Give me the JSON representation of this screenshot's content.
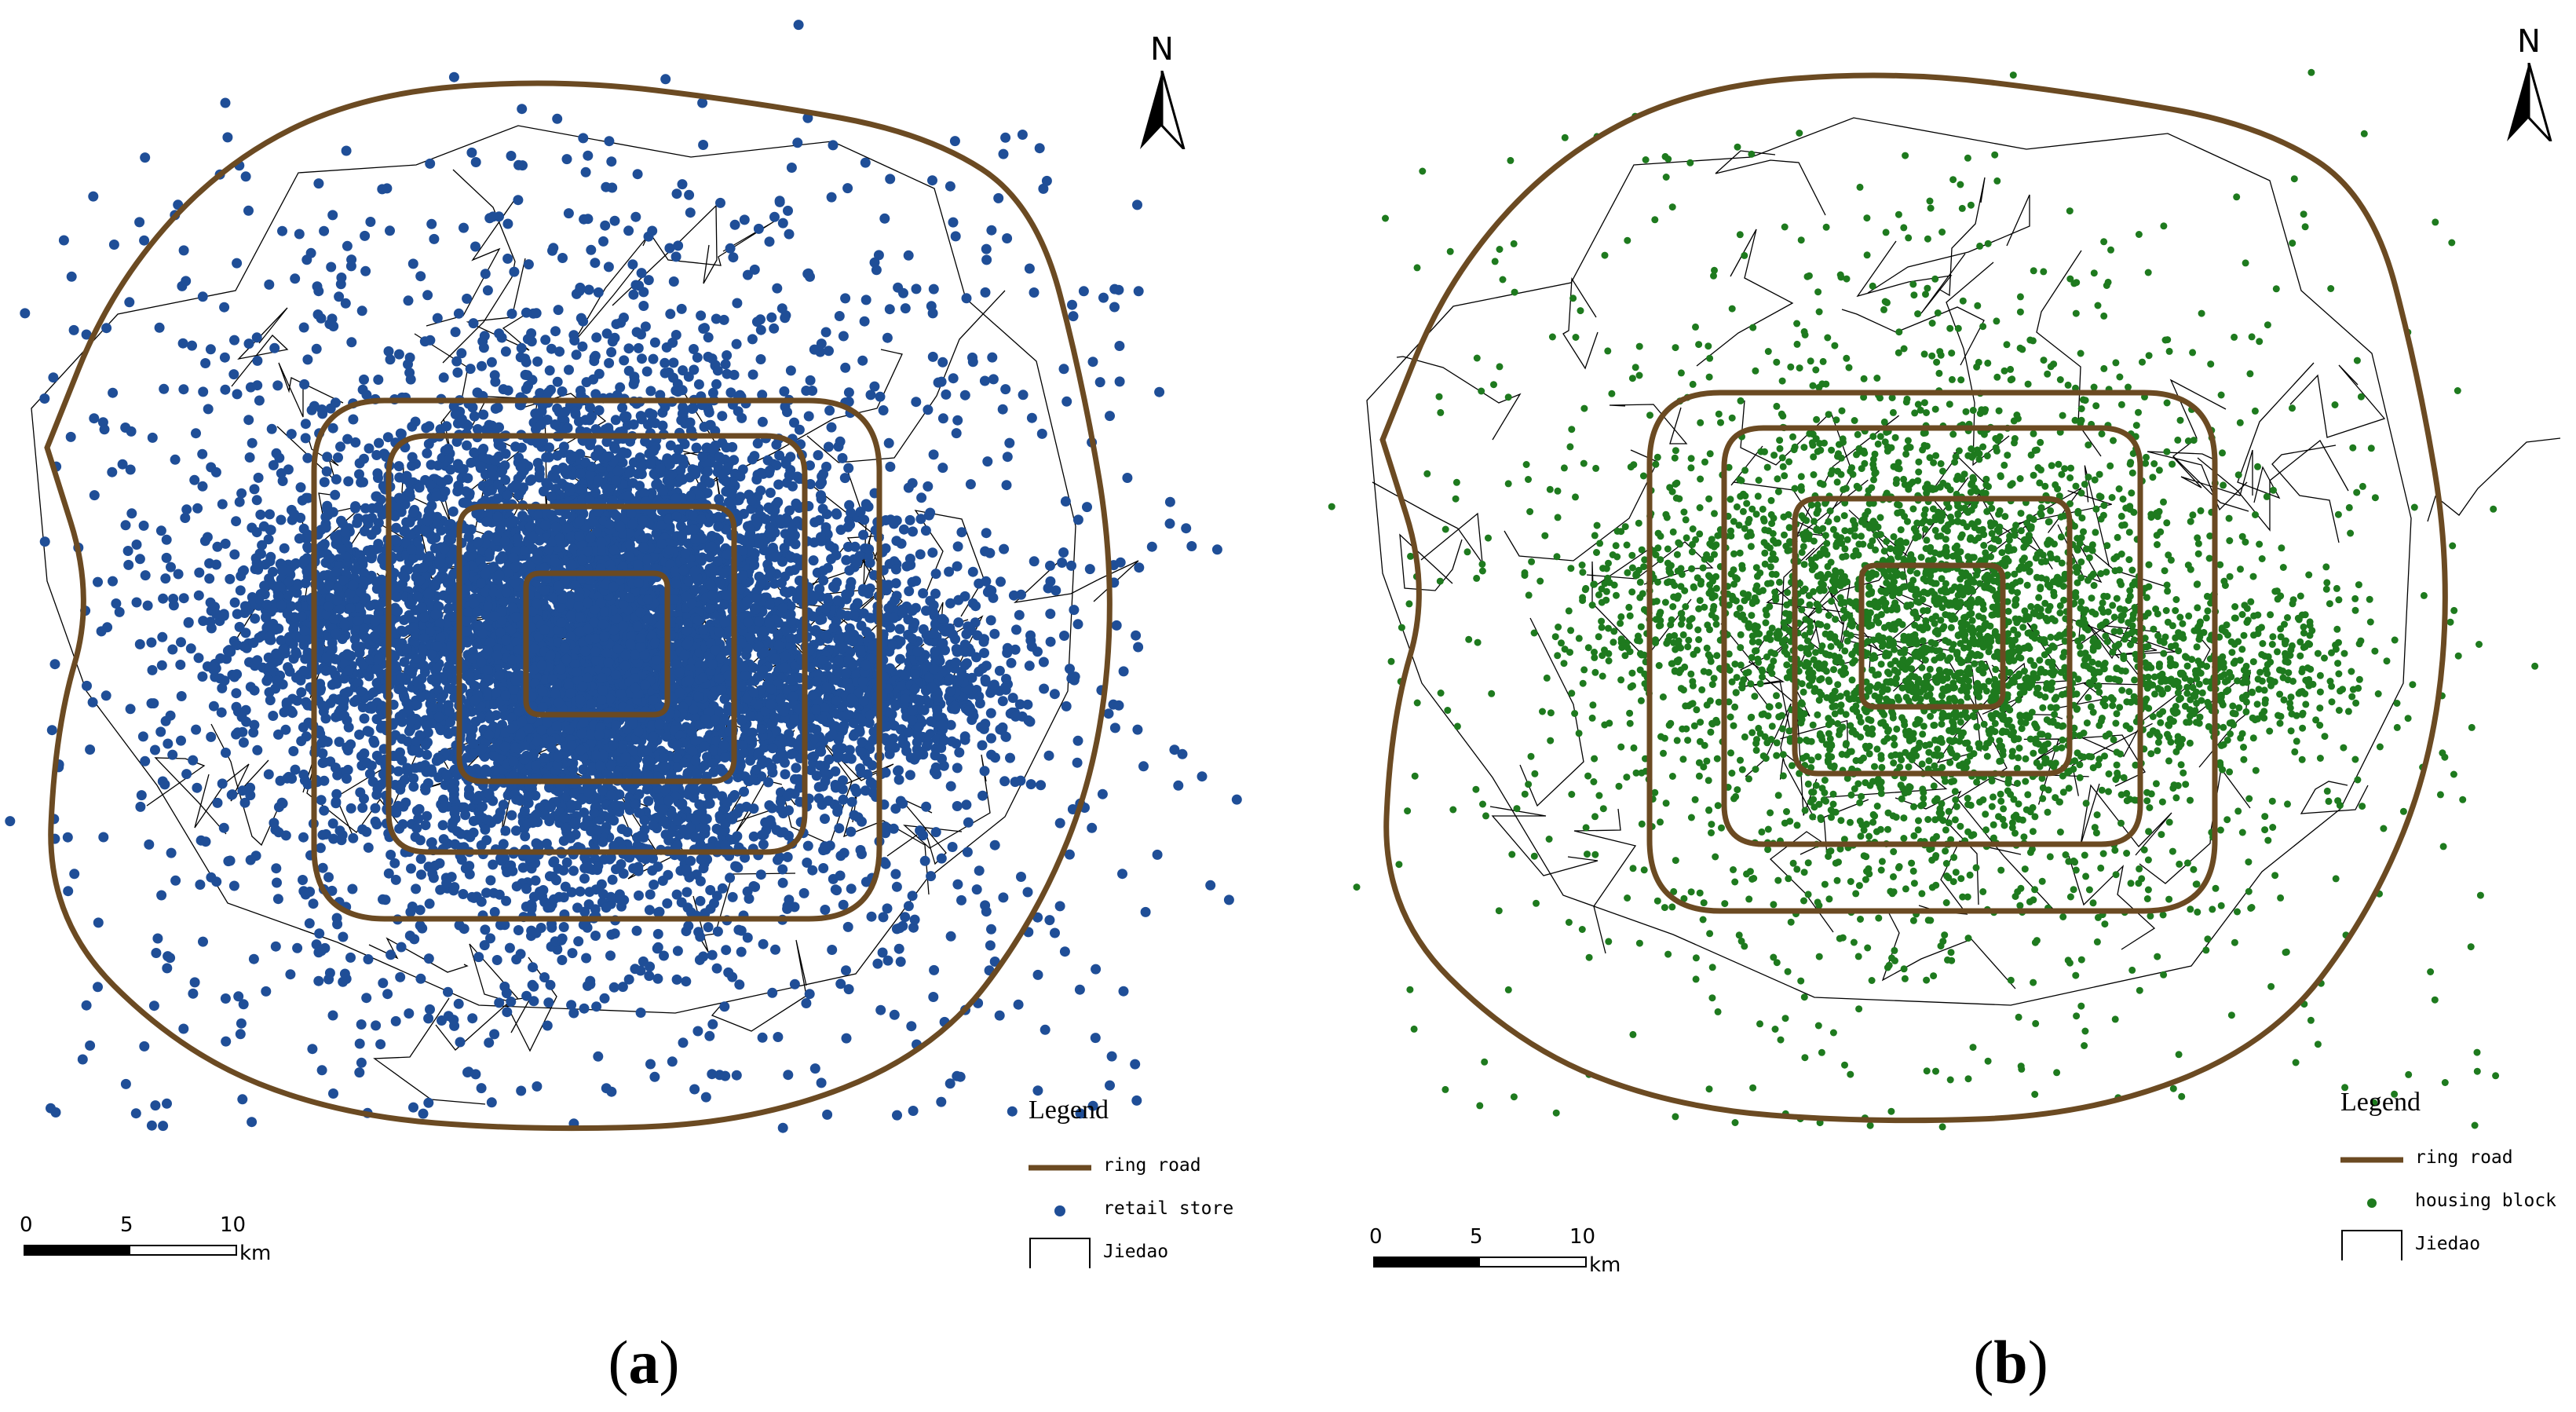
{
  "figure": {
    "panels": [
      {
        "id": "a",
        "caption_letter": "a",
        "north_label": "N",
        "point_color": "#1f4e97",
        "legend": {
          "title": "Legend",
          "items": [
            {
              "label": "ring road",
              "symbol": "line",
              "color": "#6b4a22"
            },
            {
              "label": "retail store",
              "symbol": "dot",
              "color": "#1f4e97"
            },
            {
              "label": "Jiedao",
              "symbol": "box",
              "color": "#000000"
            }
          ]
        },
        "scale": {
          "ticks": [
            "0",
            "5",
            "10"
          ],
          "unit": "km"
        }
      },
      {
        "id": "b",
        "caption_letter": "b",
        "north_label": "N",
        "point_color": "#1e7a1e",
        "legend": {
          "title": "Legend",
          "items": [
            {
              "label": "ring road",
              "symbol": "line",
              "color": "#6b4a22"
            },
            {
              "label": "housing block",
              "symbol": "dot",
              "color": "#1e7a1e"
            },
            {
              "label": "Jiedao",
              "symbol": "box",
              "color": "#000000"
            }
          ]
        },
        "scale": {
          "ticks": [
            "0",
            "5",
            "10"
          ],
          "unit": "km"
        }
      }
    ],
    "colors": {
      "ring_road": "#6b4a22",
      "jiedao_boundary": "#000000",
      "background": "#ffffff"
    }
  }
}
